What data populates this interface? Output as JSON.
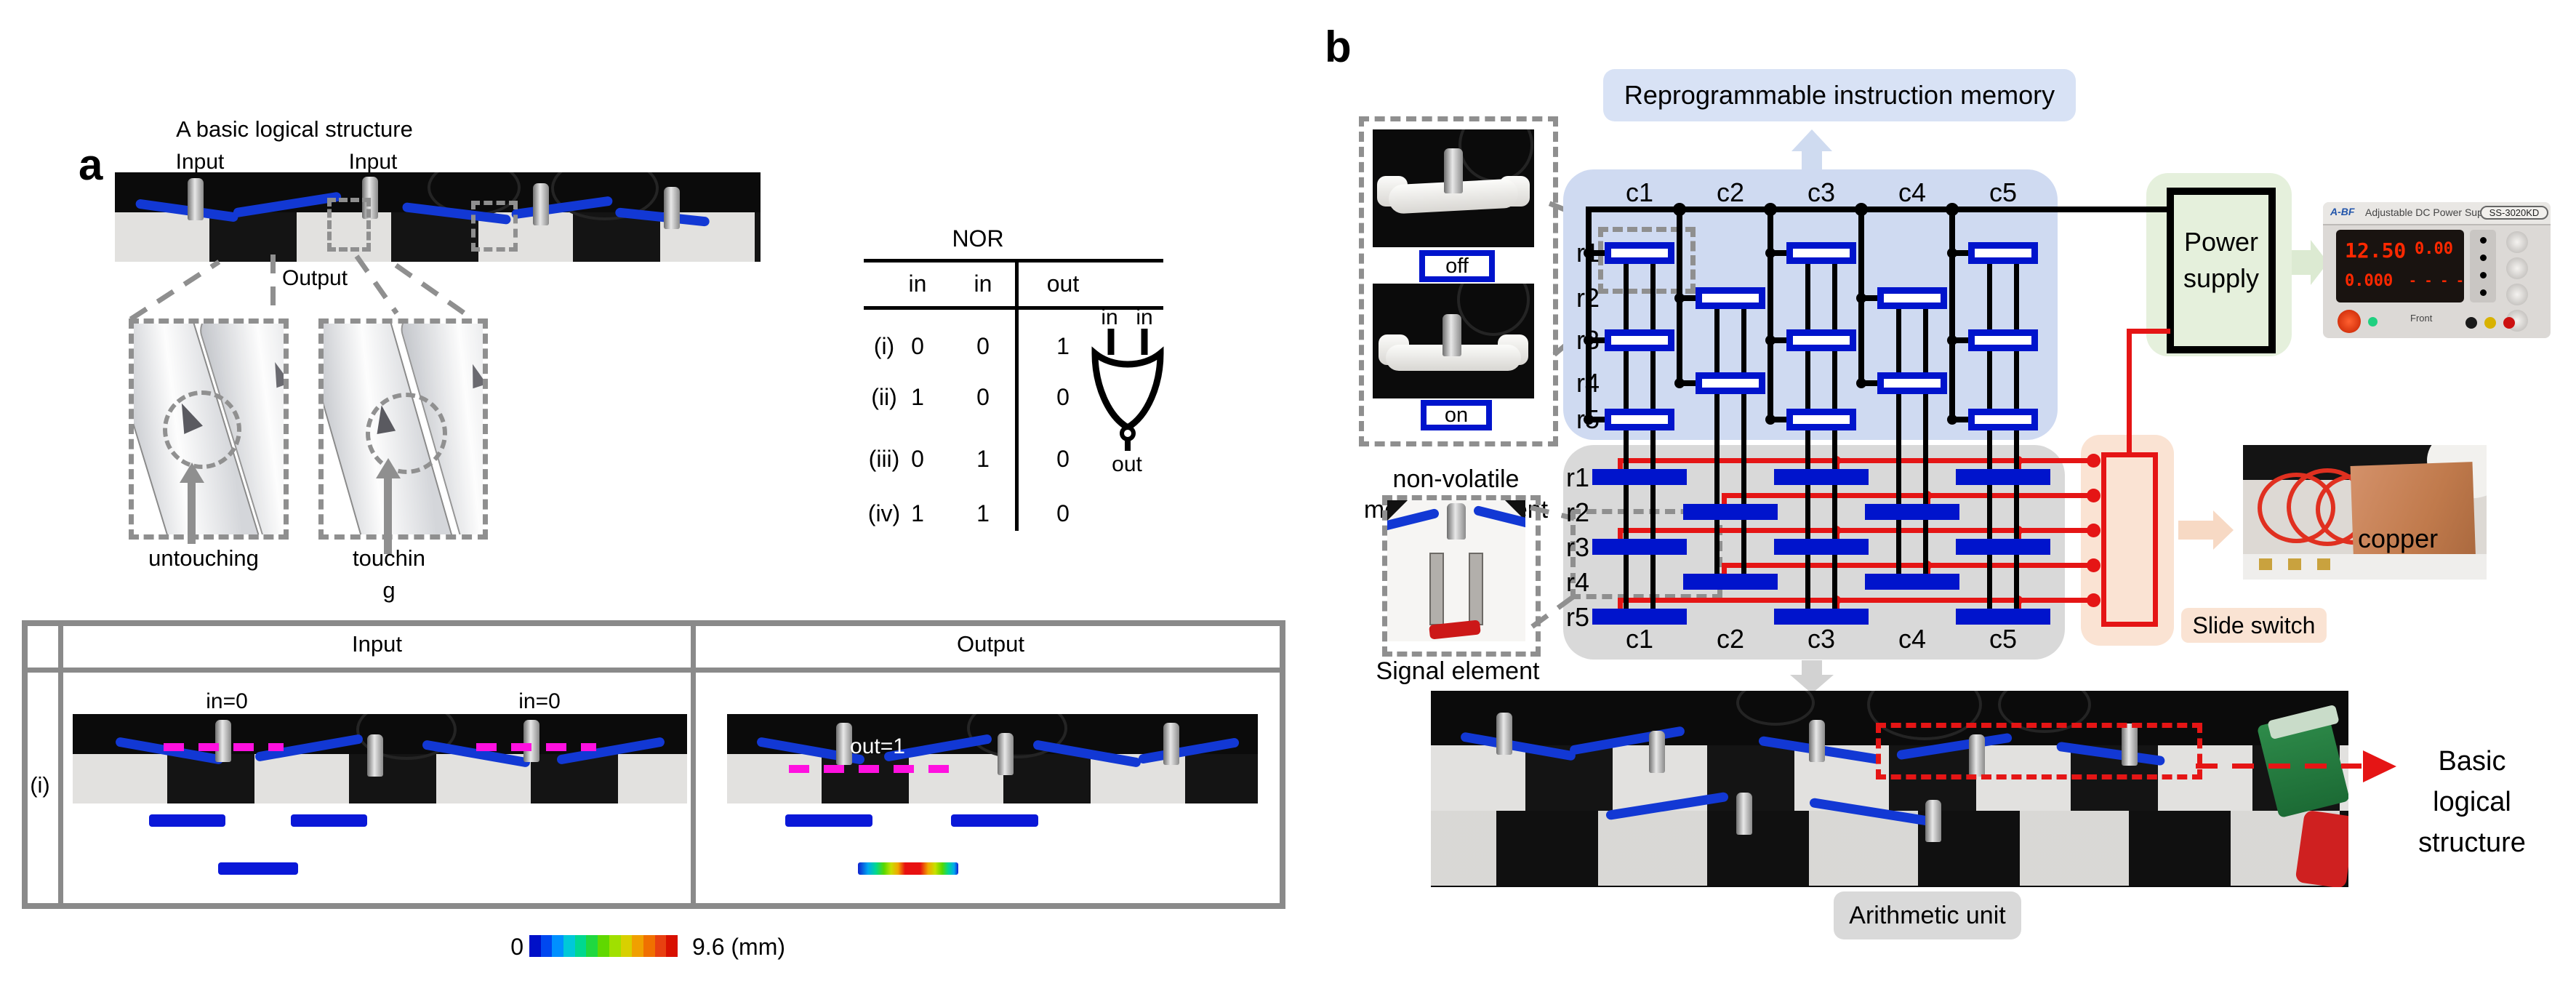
{
  "a": {
    "panel_label": "a",
    "title": "A basic logical structure",
    "photo_labels": {
      "input_left": "Input",
      "input_right": "Input",
      "output": "Output"
    },
    "states": {
      "untouching": "untouching",
      "touching_line1": "touchin",
      "touching_line2": "g"
    },
    "nor_table": {
      "title": "NOR",
      "headers": {
        "in1": "in",
        "in2": "in",
        "out": "out"
      },
      "rows": [
        {
          "label": "(i)",
          "in1": "0",
          "in2": "0",
          "out": "1"
        },
        {
          "label": "(ii)",
          "in1": "1",
          "in2": "0",
          "out": "0"
        },
        {
          "label": "(iii)",
          "in1": "0",
          "in2": "1",
          "out": "0"
        },
        {
          "label": "(iv)",
          "in1": "1",
          "in2": "1",
          "out": "0"
        }
      ]
    },
    "gate": {
      "in1": "in",
      "in2": "in",
      "out": "out"
    },
    "io_table": {
      "input_header": "Input",
      "output_header": "Output",
      "row_label": "(i)",
      "in_left": "in=0",
      "in_right": "in=0",
      "out": "out=1"
    },
    "colorbar": {
      "min": "0",
      "max": "9.6 (mm)",
      "colors": [
        "#0010c8",
        "#0048f0",
        "#0090ff",
        "#00c8d8",
        "#00d890",
        "#20d840",
        "#60d800",
        "#a0e000",
        "#d8d000",
        "#f0a000",
        "#f07000",
        "#e84010",
        "#d81000"
      ]
    }
  },
  "b": {
    "panel_label": "b",
    "memory_title": "Reprogrammable instruction memory",
    "off_label": "off",
    "on_label": "on",
    "nonvolatile_line1": "non-volatile",
    "nonvolatile_line2": "memory element",
    "signal_element": "Signal element",
    "memory": {
      "columns": [
        "c1",
        "c2",
        "c3",
        "c4",
        "c5"
      ],
      "rows": [
        "r1",
        "r2",
        "r3",
        "r4",
        "r5"
      ],
      "pattern": [
        [
          0,
          0
        ],
        [
          0,
          2
        ],
        [
          0,
          4
        ],
        [
          1,
          1
        ],
        [
          1,
          3
        ],
        [
          2,
          0
        ],
        [
          2,
          2
        ],
        [
          2,
          4
        ],
        [
          3,
          1
        ],
        [
          3,
          3
        ],
        [
          4,
          0
        ],
        [
          4,
          2
        ],
        [
          4,
          4
        ]
      ]
    },
    "arithmetic": {
      "columns": [
        "c1",
        "c2",
        "c3",
        "c4",
        "c5"
      ],
      "rows": [
        "r1",
        "r2",
        "r3",
        "r4",
        "r5"
      ],
      "label": "Arithmetic unit"
    },
    "power_supply_line1": "Power",
    "power_supply_line2": "supply",
    "psu_photo": {
      "brand": "A-BF",
      "title": "Adjustable DC Power Supply",
      "model": "SS-3020KD",
      "volts": "12.50",
      "amps": "0.00",
      "watts": "0.000",
      "ohms": "- - - -",
      "front": "Front"
    },
    "copper": "copper",
    "slide_switch": "Slide switch",
    "basic_line1": "Basic",
    "basic_line2": "logical",
    "basic_line3": "structure",
    "colors": {
      "element_blue": "#0014cc",
      "wire_red": "#e51515",
      "memory_box": "#cfdaf1",
      "arithmetic_box": "#d9d9d9",
      "power_box": "#e5f0dc",
      "switch_box": "#fae3d3"
    }
  }
}
